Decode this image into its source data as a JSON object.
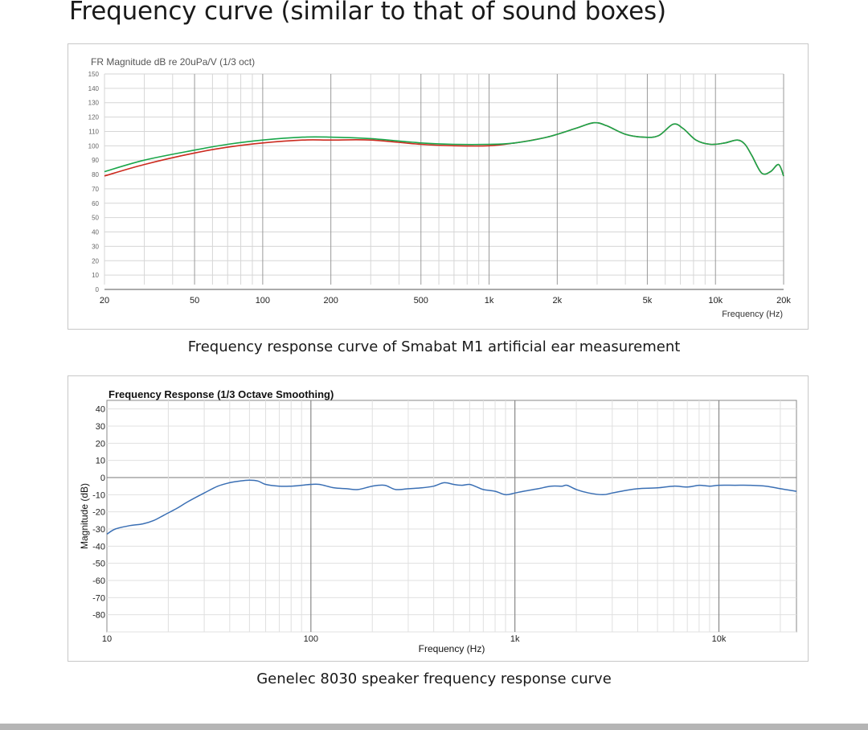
{
  "page": {
    "title": "Frequency curve (similar to that of sound boxes)"
  },
  "colors": {
    "green": "#1aa64a",
    "red": "#cc2a1e",
    "blue": "#3a6fb4",
    "bottom_bar": "#b5b5b5"
  },
  "chart_data": [
    {
      "type": "line",
      "title": "FR Magnitude dB re 20uPa/V (1/3 oct)",
      "caption": "Frequency response curve of Smabat M1 artificial ear measurement",
      "xlabel": "Frequency (Hz)",
      "ylabel": "",
      "xscale": "log",
      "xlim": [
        20,
        20000
      ],
      "ylim": [
        0,
        150
      ],
      "grid": true,
      "x_tick_labels": [
        {
          "value": 20,
          "label": "20"
        },
        {
          "value": 50,
          "label": "50"
        },
        {
          "value": 100,
          "label": "100"
        },
        {
          "value": 200,
          "label": "200"
        },
        {
          "value": 500,
          "label": "500"
        },
        {
          "value": 1000,
          "label": "1k"
        },
        {
          "value": 2000,
          "label": "2k"
        },
        {
          "value": 5000,
          "label": "5k"
        },
        {
          "value": 10000,
          "label": "10k"
        },
        {
          "value": 20000,
          "label": "20k"
        }
      ],
      "y_tick_labels": [
        "0",
        "10",
        "20",
        "30",
        "40",
        "50",
        "60",
        "70",
        "80",
        "90",
        "100",
        "110",
        "120",
        "130",
        "140",
        "150"
      ],
      "series": [
        {
          "color": "green",
          "points": [
            [
              20,
              82
            ],
            [
              30,
              90
            ],
            [
              50,
              97
            ],
            [
              70,
              101
            ],
            [
              100,
              104
            ],
            [
              150,
              106
            ],
            [
              200,
              106
            ],
            [
              300,
              105
            ],
            [
              500,
              102
            ],
            [
              700,
              101
            ],
            [
              1000,
              101
            ],
            [
              1300,
              102
            ],
            [
              1800,
              106
            ],
            [
              2400,
              112
            ],
            [
              2900,
              116
            ],
            [
              3300,
              114
            ],
            [
              4000,
              108
            ],
            [
              4800,
              106
            ],
            [
              5600,
              107
            ],
            [
              6500,
              115
            ],
            [
              7200,
              112
            ],
            [
              8200,
              104
            ],
            [
              9500,
              101
            ],
            [
              11000,
              102
            ],
            [
              12500,
              104
            ],
            [
              13500,
              101
            ],
            [
              14500,
              93
            ],
            [
              16000,
              81
            ],
            [
              17500,
              82
            ],
            [
              19000,
              87
            ],
            [
              20000,
              79
            ]
          ]
        },
        {
          "color": "red",
          "points": [
            [
              20,
              79
            ],
            [
              30,
              87
            ],
            [
              50,
              95
            ],
            [
              70,
              99
            ],
            [
              100,
              102
            ],
            [
              150,
              104
            ],
            [
              200,
              104
            ],
            [
              300,
              104
            ],
            [
              500,
              101
            ],
            [
              700,
              100
            ],
            [
              1000,
              100
            ],
            [
              1300,
              102
            ],
            [
              1800,
              106
            ],
            [
              2400,
              112
            ],
            [
              2900,
              116
            ],
            [
              3300,
              114
            ],
            [
              4000,
              108
            ],
            [
              4800,
              106
            ],
            [
              5600,
              107
            ],
            [
              6500,
              115
            ],
            [
              7200,
              112
            ],
            [
              8200,
              104
            ],
            [
              9500,
              101
            ],
            [
              11000,
              102
            ],
            [
              12500,
              104
            ],
            [
              13500,
              101
            ],
            [
              14500,
              93
            ],
            [
              16000,
              81
            ],
            [
              17500,
              82
            ],
            [
              19000,
              87
            ],
            [
              20000,
              79
            ]
          ]
        }
      ]
    },
    {
      "type": "line",
      "title": "Frequency Response (1/3 Octave Smoothing)",
      "caption": "Genelec 8030 speaker frequency response curve",
      "xlabel": "Frequency (Hz)",
      "ylabel": "Magnitude (dB)",
      "xscale": "log",
      "xlim": [
        10,
        24000
      ],
      "ylim": [
        -90,
        45
      ],
      "grid": true,
      "x_tick_labels": [
        {
          "value": 10,
          "label": "10"
        },
        {
          "value": 100,
          "label": "100"
        },
        {
          "value": 1000,
          "label": "1k"
        },
        {
          "value": 10000,
          "label": "10k"
        }
      ],
      "y_tick_labels": [
        "40",
        "30",
        "20",
        "10",
        "0",
        "-10",
        "-20",
        "-30",
        "-40",
        "-50",
        "-60",
        "-70",
        "-80"
      ],
      "series": [
        {
          "color": "blue",
          "points": [
            [
              10,
              -33
            ],
            [
              11,
              -30
            ],
            [
              13,
              -28
            ],
            [
              15,
              -27
            ],
            [
              17,
              -25
            ],
            [
              19,
              -22
            ],
            [
              22,
              -18
            ],
            [
              25,
              -14
            ],
            [
              30,
              -9
            ],
            [
              35,
              -5
            ],
            [
              40,
              -3
            ],
            [
              45,
              -2
            ],
            [
              50,
              -1.5
            ],
            [
              55,
              -2
            ],
            [
              60,
              -4
            ],
            [
              70,
              -5
            ],
            [
              80,
              -5
            ],
            [
              90,
              -4.5
            ],
            [
              100,
              -4
            ],
            [
              110,
              -4
            ],
            [
              130,
              -6
            ],
            [
              150,
              -6.5
            ],
            [
              170,
              -7
            ],
            [
              200,
              -5
            ],
            [
              230,
              -4.5
            ],
            [
              260,
              -7
            ],
            [
              300,
              -6.5
            ],
            [
              350,
              -6
            ],
            [
              400,
              -5
            ],
            [
              450,
              -3
            ],
            [
              500,
              -4
            ],
            [
              550,
              -4.5
            ],
            [
              600,
              -4
            ],
            [
              650,
              -5.5
            ],
            [
              700,
              -7
            ],
            [
              800,
              -8
            ],
            [
              900,
              -10
            ],
            [
              1000,
              -9
            ],
            [
              1100,
              -8
            ],
            [
              1300,
              -6.5
            ],
            [
              1500,
              -5
            ],
            [
              1700,
              -5
            ],
            [
              1800,
              -4.5
            ],
            [
              2000,
              -7
            ],
            [
              2300,
              -9
            ],
            [
              2700,
              -10
            ],
            [
              3000,
              -9
            ],
            [
              3500,
              -7.5
            ],
            [
              4000,
              -6.5
            ],
            [
              5000,
              -6
            ],
            [
              6000,
              -5
            ],
            [
              7000,
              -5.5
            ],
            [
              8000,
              -4.5
            ],
            [
              9000,
              -5
            ],
            [
              10000,
              -4.5
            ],
            [
              12000,
              -4.5
            ],
            [
              14000,
              -4.5
            ],
            [
              17000,
              -5
            ],
            [
              20000,
              -6.5
            ],
            [
              24000,
              -8
            ]
          ]
        }
      ]
    }
  ]
}
